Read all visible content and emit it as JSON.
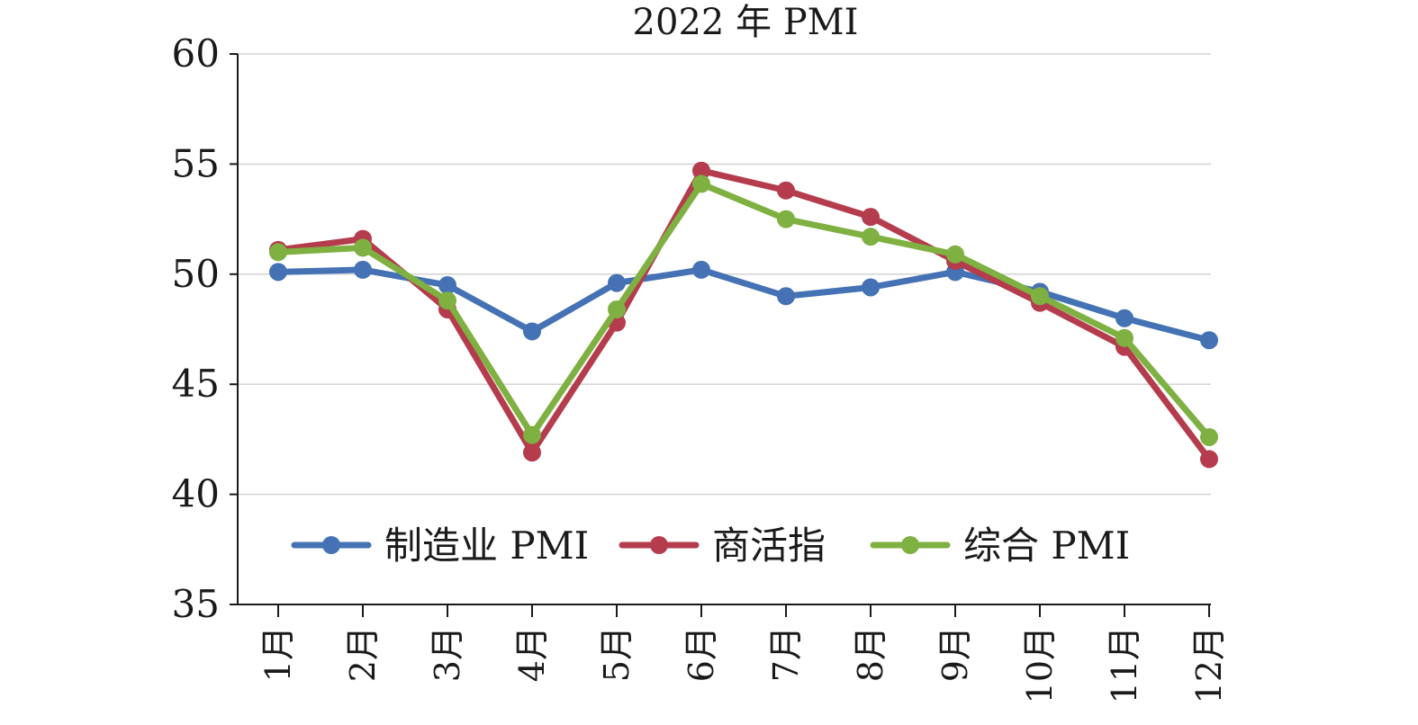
{
  "chart_data": {
    "type": "line",
    "title": "2022 年 PMI",
    "xlabel": "",
    "ylabel": "",
    "ylim": [
      35,
      60
    ],
    "yticks": [
      "35",
      "40",
      "45",
      "50",
      "55",
      "60"
    ],
    "categories": [
      "1月",
      "2月",
      "3月",
      "4月",
      "5月",
      "6月",
      "7月",
      "8月",
      "9月",
      "10月",
      "11月",
      "12月"
    ],
    "grid": true,
    "legend_position": "bottom-inside",
    "series": [
      {
        "name": "制造业 PMI",
        "color": "#4472b4",
        "values": [
          50.1,
          50.2,
          49.5,
          47.4,
          49.6,
          50.2,
          49.0,
          49.4,
          50.1,
          49.2,
          48.0,
          47.0
        ]
      },
      {
        "name": "商活指",
        "color": "#b43c4c",
        "values": [
          51.1,
          51.6,
          48.4,
          41.9,
          47.8,
          54.7,
          53.8,
          52.6,
          50.6,
          48.7,
          46.7,
          41.6
        ]
      },
      {
        "name": "综合 PMI",
        "color": "#7fb042",
        "values": [
          51.0,
          51.2,
          48.8,
          42.7,
          48.4,
          54.1,
          52.5,
          51.7,
          50.9,
          49.0,
          47.1,
          42.6
        ]
      }
    ]
  }
}
